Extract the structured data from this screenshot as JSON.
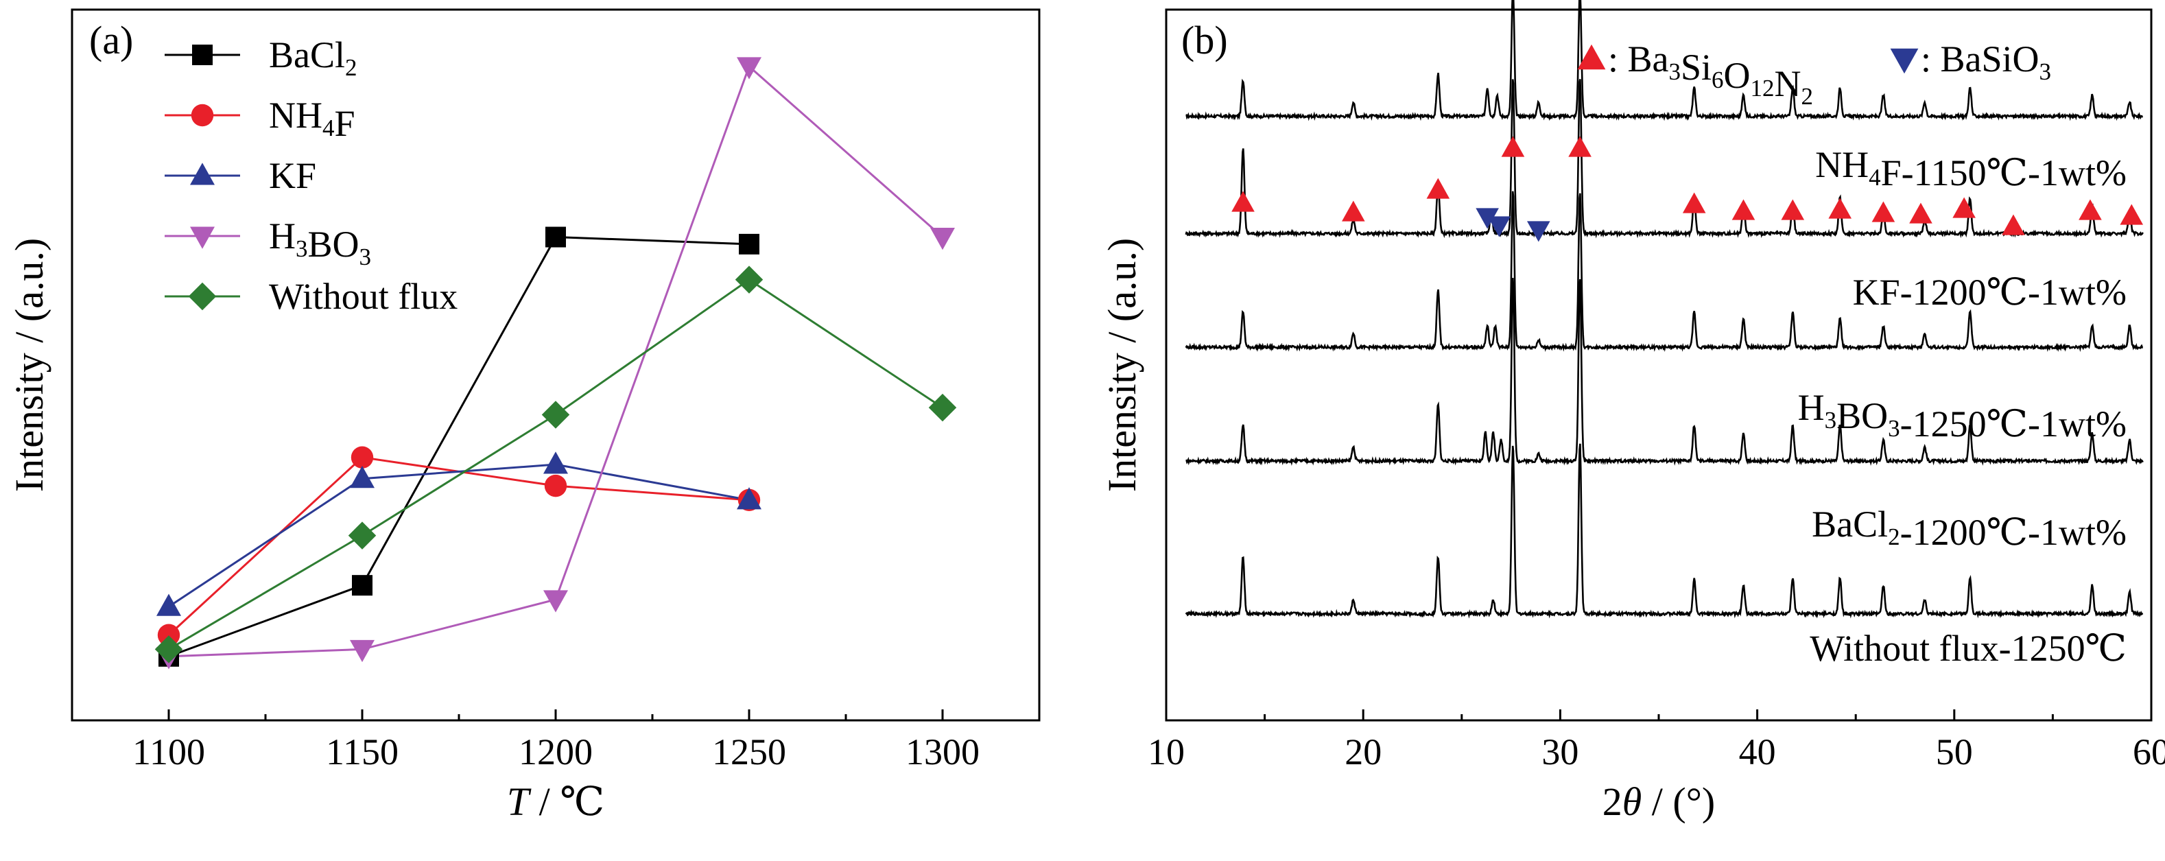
{
  "chart_data": [
    {
      "type": "line",
      "panel_label": "(a)",
      "xlabel": "T / ℃",
      "ylabel": "Intensity / (a.u.)",
      "xlim": [
        1075,
        1325
      ],
      "ylim": [
        0,
        100
      ],
      "xticks": [
        1100,
        1150,
        1200,
        1250,
        1300
      ],
      "y_ticks_labeled": false,
      "grid": false,
      "legend_position": "top-left",
      "series": [
        {
          "name": "BaCl₂",
          "color": "#000000",
          "marker": "square",
          "x": [
            1100,
            1150,
            1200,
            1250
          ],
          "y": [
            9,
            19,
            68,
            67
          ]
        },
        {
          "name": "NH₄F",
          "color": "#e8202a",
          "marker": "circle",
          "x": [
            1100,
            1150,
            1200,
            1250
          ],
          "y": [
            12,
            37,
            33,
            31
          ]
        },
        {
          "name": "KF",
          "color": "#2b3a93",
          "marker": "triangle-up",
          "x": [
            1100,
            1150,
            1200,
            1250
          ],
          "y": [
            16,
            34,
            36,
            31
          ]
        },
        {
          "name": "H₃BO₃",
          "color": "#b05bb8",
          "marker": "triangle-down",
          "x": [
            1100,
            1150,
            1200,
            1250,
            1300
          ],
          "y": [
            9,
            10,
            17,
            92,
            68
          ]
        },
        {
          "name": "Without flux",
          "color": "#2e7d32",
          "marker": "diamond",
          "x": [
            1100,
            1150,
            1200,
            1250,
            1300
          ],
          "y": [
            10,
            26,
            43,
            62,
            44
          ]
        }
      ]
    },
    {
      "type": "line",
      "panel_label": "(b)",
      "xlabel": "2θ / (°)",
      "ylabel": "Intensity / (a.u.)",
      "xlim": [
        10,
        60
      ],
      "xticks": [
        10,
        20,
        30,
        40,
        50,
        60
      ],
      "y_ticks_labeled": false,
      "grid": false,
      "legend": [
        {
          "label": ": Ba₃Si₆O₁₂N₂",
          "color": "#e8202a",
          "marker": "triangle-up"
        },
        {
          "label": ": BaSiO₃",
          "color": "#2b3a93",
          "marker": "triangle-down"
        }
      ],
      "series": [
        {
          "name": "NH₄F-1150℃-1wt%",
          "baseline": 0.85,
          "peaks": [
            [
              13.9,
              0.05
            ],
            [
              19.5,
              0.02
            ],
            [
              23.8,
              0.06
            ],
            [
              26.3,
              0.04
            ],
            [
              26.8,
              0.03
            ],
            [
              27.6,
              0.18
            ],
            [
              28.9,
              0.02
            ],
            [
              31.0,
              0.18
            ],
            [
              36.8,
              0.04
            ],
            [
              39.3,
              0.03
            ],
            [
              41.8,
              0.04
            ],
            [
              44.2,
              0.04
            ],
            [
              46.4,
              0.03
            ],
            [
              48.5,
              0.02
            ],
            [
              50.8,
              0.04
            ],
            [
              57.0,
              0.03
            ],
            [
              58.9,
              0.02
            ]
          ]
        },
        {
          "name": "KF-1200℃-1wt%",
          "baseline": 0.685,
          "peaks": [
            [
              13.9,
              0.12
            ],
            [
              19.5,
              0.02
            ],
            [
              23.8,
              0.07
            ],
            [
              26.5,
              0.03
            ],
            [
              27.6,
              0.22
            ],
            [
              28.9,
              0.01
            ],
            [
              31.0,
              0.22
            ],
            [
              36.8,
              0.05
            ],
            [
              39.3,
              0.04
            ],
            [
              41.8,
              0.04
            ],
            [
              44.2,
              0.05
            ],
            [
              46.4,
              0.03
            ],
            [
              48.5,
              0.02
            ],
            [
              50.8,
              0.05
            ],
            [
              57.0,
              0.04
            ],
            [
              58.9,
              0.03
            ]
          ]
        },
        {
          "name": "H₃BO₃-1250℃-1wt%",
          "baseline": 0.525,
          "peaks": [
            [
              13.9,
              0.05
            ],
            [
              19.5,
              0.02
            ],
            [
              23.8,
              0.08
            ],
            [
              26.3,
              0.03
            ],
            [
              26.7,
              0.03
            ],
            [
              27.6,
              0.22
            ],
            [
              28.9,
              0.01
            ],
            [
              31.0,
              0.22
            ],
            [
              36.8,
              0.05
            ],
            [
              39.3,
              0.04
            ],
            [
              41.8,
              0.05
            ],
            [
              44.2,
              0.04
            ],
            [
              46.4,
              0.03
            ],
            [
              48.5,
              0.02
            ],
            [
              50.8,
              0.05
            ],
            [
              57.0,
              0.03
            ],
            [
              58.9,
              0.03
            ]
          ]
        },
        {
          "name": "BaCl₂-1200℃-1wt%",
          "baseline": 0.365,
          "peaks": [
            [
              13.9,
              0.05
            ],
            [
              19.5,
              0.02
            ],
            [
              23.8,
              0.08
            ],
            [
              26.2,
              0.04
            ],
            [
              26.6,
              0.04
            ],
            [
              27.0,
              0.03
            ],
            [
              27.6,
              0.26
            ],
            [
              28.9,
              0.01
            ],
            [
              31.0,
              0.26
            ],
            [
              36.8,
              0.05
            ],
            [
              39.3,
              0.04
            ],
            [
              41.8,
              0.05
            ],
            [
              44.2,
              0.05
            ],
            [
              46.4,
              0.03
            ],
            [
              48.5,
              0.02
            ],
            [
              50.8,
              0.05
            ],
            [
              57.0,
              0.04
            ],
            [
              58.9,
              0.03
            ]
          ]
        },
        {
          "name": "Without flux-1250℃",
          "baseline": 0.15,
          "peaks": [
            [
              13.9,
              0.08
            ],
            [
              19.5,
              0.02
            ],
            [
              23.8,
              0.08
            ],
            [
              26.6,
              0.02
            ],
            [
              27.6,
              0.24
            ],
            [
              31.0,
              0.24
            ],
            [
              36.8,
              0.05
            ],
            [
              39.3,
              0.04
            ],
            [
              41.8,
              0.05
            ],
            [
              44.2,
              0.05
            ],
            [
              46.4,
              0.04
            ],
            [
              48.5,
              0.02
            ],
            [
              50.8,
              0.05
            ],
            [
              57.0,
              0.04
            ],
            [
              58.9,
              0.03
            ]
          ]
        }
      ],
      "phase_markers": {
        "Ba3Si6O12N2": [
          13.9,
          19.5,
          23.8,
          27.6,
          31.0,
          36.8,
          39.3,
          41.8,
          44.2,
          46.4,
          48.3,
          50.5,
          53.0,
          56.9,
          59.0
        ],
        "BaSiO3": [
          26.3,
          26.9,
          28.9
        ]
      }
    }
  ]
}
